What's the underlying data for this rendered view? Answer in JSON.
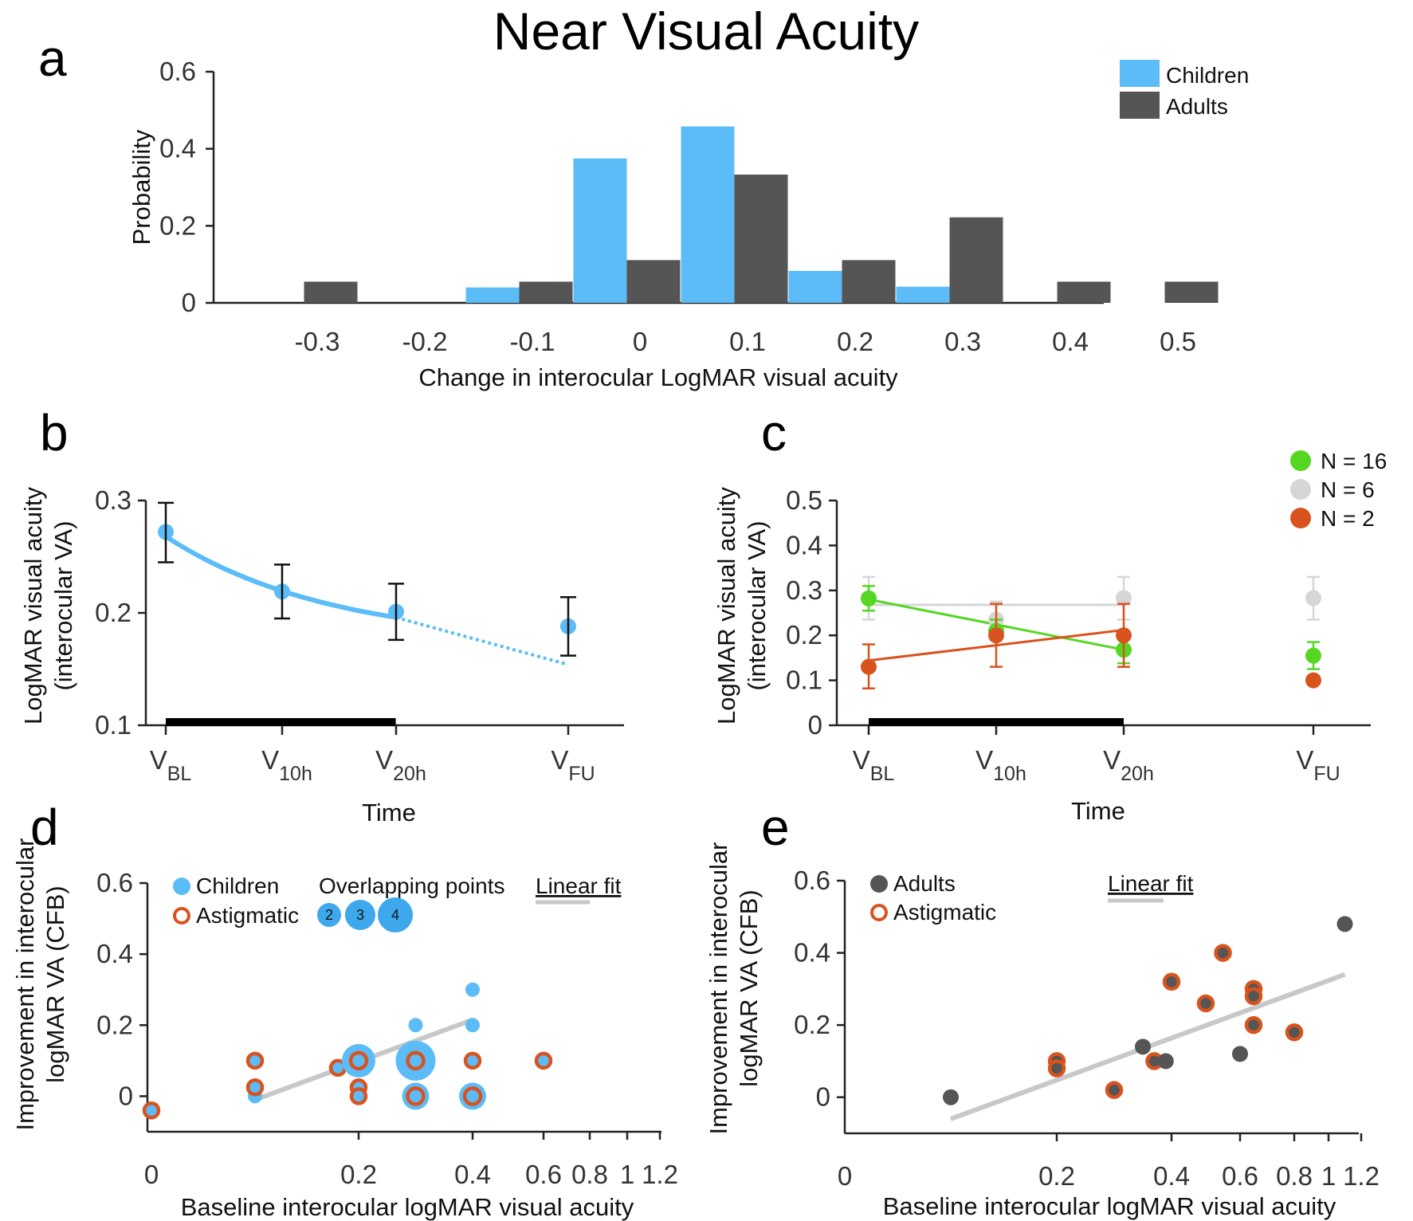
{
  "title": "Near Visual Acuity",
  "colors": {
    "children": "#5bbcf8",
    "adults": "#555555",
    "astigmatic": "#d9531e",
    "n16": "#55d722",
    "n6": "#d6d6d6",
    "n2": "#d9531e",
    "fit": "#c8c8c8"
  },
  "chart_data": [
    {
      "id": "a",
      "letter": "a",
      "type": "bar",
      "xlabel": "Change in interocular LogMAR visual acuity",
      "ylabel": "Probability",
      "ylim": [
        0,
        0.6
      ],
      "yticks": [
        "0",
        "0.2",
        "0.4",
        "0.6"
      ],
      "categories": [
        "-0.3",
        "-0.2",
        "-0.1",
        "0",
        "0.1",
        "0.2",
        "0.3",
        "0.4",
        "0.5"
      ],
      "series": [
        {
          "name": "Children",
          "values": [
            0,
            0,
            0.04,
            0.375,
            0.458,
            0.083,
            0.042,
            0,
            0
          ]
        },
        {
          "name": "Adults",
          "values": [
            0.055,
            0,
            0.055,
            0.111,
            0.333,
            0.111,
            0.222,
            0.055,
            0.055
          ]
        }
      ],
      "legend": [
        "Children",
        "Adults"
      ],
      "legend_position": "top-right"
    },
    {
      "id": "b",
      "letter": "b",
      "type": "line",
      "xlabel": "Time",
      "ylabel": [
        "LogMAR visual acuity",
        "(interocular VA)"
      ],
      "ylim": [
        0.1,
        0.3
      ],
      "yticks": [
        "0.1",
        "0.2",
        "0.3"
      ],
      "x_labels": [
        {
          "main": "V",
          "sub": "BL"
        },
        {
          "main": "V",
          "sub": "10h"
        },
        {
          "main": "V",
          "sub": "20h"
        },
        {
          "main": "V",
          "sub": "FU"
        }
      ],
      "x": [
        0,
        10,
        20,
        35
      ],
      "y": [
        0.272,
        0.219,
        0.201,
        0.188
      ],
      "err_lo": [
        0.245,
        0.195,
        0.176,
        0.162
      ],
      "err_hi": [
        0.298,
        0.243,
        0.226,
        0.214
      ],
      "fit_solid": {
        "x": [
          0,
          20
        ],
        "y": [
          0.268,
          0.196
        ]
      },
      "fit_dotted": {
        "x": [
          20,
          35
        ],
        "y": [
          0.196,
          0.154
        ]
      },
      "treatment_bar": [
        0,
        20
      ]
    },
    {
      "id": "c",
      "letter": "c",
      "type": "line",
      "xlabel": "Time",
      "ylabel": [
        "LogMAR visual acuity",
        "(interocular VA)"
      ],
      "ylim": [
        0,
        0.5
      ],
      "yticks": [
        "0",
        "0.1",
        "0.2",
        "0.3",
        "0.4",
        "0.5"
      ],
      "x_labels": [
        {
          "main": "V",
          "sub": "BL"
        },
        {
          "main": "V",
          "sub": "10h"
        },
        {
          "main": "V",
          "sub": "20h"
        },
        {
          "main": "V",
          "sub": "FU"
        }
      ],
      "x": [
        0,
        10,
        20,
        35
      ],
      "series": [
        {
          "name": "N = 16",
          "y": [
            0.282,
            0.21,
            0.168,
            0.155
          ],
          "err_lo": [
            0.255,
            0.19,
            0.138,
            0.125
          ],
          "err_hi": [
            0.31,
            0.235,
            0.195,
            0.185
          ],
          "fit": [
            0.28,
            0.168
          ]
        },
        {
          "name": "N = 6",
          "y": [
            0.283,
            0.235,
            0.283,
            0.283
          ],
          "err_lo": [
            0.235,
            0.195,
            0.235,
            0.235
          ],
          "err_hi": [
            0.33,
            0.275,
            0.33,
            0.33
          ],
          "fit": [
            0.268,
            0.268
          ]
        },
        {
          "name": "N = 2",
          "y": [
            0.13,
            0.2,
            0.2,
            0.1
          ],
          "err_lo": [
            0.082,
            0.13,
            0.13,
            0.1
          ],
          "err_hi": [
            0.18,
            0.27,
            0.27,
            0.1
          ],
          "fit": [
            0.144,
            0.212
          ]
        }
      ],
      "legend": [
        "N = 16",
        "N = 6",
        "N = 2"
      ],
      "legend_position": "top-right",
      "treatment_bar": [
        0,
        20
      ]
    },
    {
      "id": "d",
      "letter": "d",
      "type": "scatter",
      "xlabel": "Baseline interocular logMAR visual acuity",
      "ylabel": [
        "Improvement in interocular",
        "logMAR VA (CFB)"
      ],
      "xticks": [
        "0",
        "0.2",
        "0.4",
        "0.6",
        "0.8",
        "1",
        "1.2"
      ],
      "yticks": [
        "0",
        "0.2",
        "0.4",
        "0.6"
      ],
      "ylim": [
        -0.1,
        0.6
      ],
      "legend": {
        "children": "Children",
        "astigmatic": "Astigmatic",
        "overlap_title": "Overlapping points",
        "overlap_counts": [
          "2",
          "3",
          "4"
        ],
        "fit": "Linear fit"
      },
      "points": [
        {
          "x": 0.0,
          "y": -0.04,
          "n": 1,
          "astig": true
        },
        {
          "x": 0.1,
          "y": 0.1,
          "n": 1,
          "astig": true
        },
        {
          "x": 0.1,
          "y": 0.0,
          "n": 1,
          "astig": false
        },
        {
          "x": 0.1,
          "y": 0.025,
          "n": 1,
          "astig": true
        },
        {
          "x": 0.18,
          "y": 0.08,
          "n": 1,
          "astig": true
        },
        {
          "x": 0.2,
          "y": 0.1,
          "n": 3,
          "astig": true
        },
        {
          "x": 0.2,
          "y": 0.025,
          "n": 1,
          "astig": true
        },
        {
          "x": 0.2,
          "y": 0.0,
          "n": 1,
          "astig": true
        },
        {
          "x": 0.3,
          "y": 0.2,
          "n": 1,
          "astig": false
        },
        {
          "x": 0.3,
          "y": 0.1,
          "n": 4,
          "astig": true
        },
        {
          "x": 0.3,
          "y": 0.0,
          "n": 2,
          "astig": true
        },
        {
          "x": 0.4,
          "y": 0.3,
          "n": 1,
          "astig": false
        },
        {
          "x": 0.4,
          "y": 0.2,
          "n": 1,
          "astig": false
        },
        {
          "x": 0.4,
          "y": 0.1,
          "n": 1,
          "astig": true
        },
        {
          "x": 0.4,
          "y": 0.0,
          "n": 2,
          "astig": true
        },
        {
          "x": 0.6,
          "y": 0.1,
          "n": 1,
          "astig": true
        }
      ],
      "fit": {
        "x": [
          0.1,
          0.4
        ],
        "y": [
          -0.01,
          0.215
        ]
      }
    },
    {
      "id": "e",
      "letter": "e",
      "type": "scatter",
      "xlabel": "Baseline interocular logMAR visual acuity",
      "ylabel": [
        "Improvement in interocular",
        "logMAR VA (CFB)"
      ],
      "xticks": [
        "0",
        "0.2",
        "0.4",
        "0.6",
        "0.8",
        "1",
        "1.2"
      ],
      "yticks": [
        "0",
        "0.2",
        "0.4",
        "0.6"
      ],
      "ylim": [
        -0.1,
        0.6
      ],
      "legend": {
        "adults": "Adults",
        "astigmatic": "Astigmatic",
        "fit": "Linear fit"
      },
      "points": [
        {
          "x": 0.1,
          "y": 0.0,
          "astig": false
        },
        {
          "x": 0.2,
          "y": 0.1,
          "astig": true
        },
        {
          "x": 0.2,
          "y": 0.08,
          "astig": true
        },
        {
          "x": 0.3,
          "y": 0.02,
          "astig": true
        },
        {
          "x": 0.35,
          "y": 0.14,
          "astig": false
        },
        {
          "x": 0.37,
          "y": 0.1,
          "astig": true
        },
        {
          "x": 0.39,
          "y": 0.1,
          "astig": false
        },
        {
          "x": 0.4,
          "y": 0.32,
          "astig": true
        },
        {
          "x": 0.5,
          "y": 0.26,
          "astig": true
        },
        {
          "x": 0.55,
          "y": 0.4,
          "astig": true
        },
        {
          "x": 0.6,
          "y": 0.12,
          "astig": false
        },
        {
          "x": 0.65,
          "y": 0.3,
          "astig": true
        },
        {
          "x": 0.65,
          "y": 0.28,
          "astig": true
        },
        {
          "x": 0.65,
          "y": 0.2,
          "astig": true
        },
        {
          "x": 0.8,
          "y": 0.18,
          "astig": true
        },
        {
          "x": 1.1,
          "y": 0.48,
          "astig": false
        }
      ],
      "fit": {
        "x": [
          0.1,
          1.1
        ],
        "y": [
          -0.06,
          0.34
        ]
      }
    }
  ]
}
